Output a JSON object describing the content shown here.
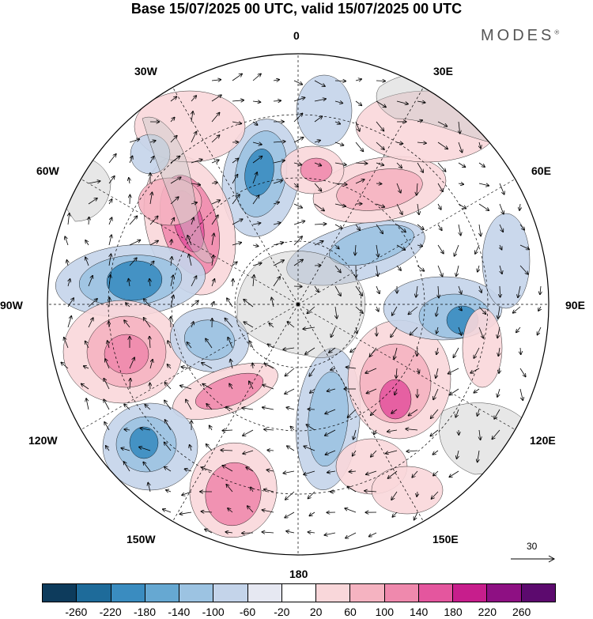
{
  "title": "Base 15/07/2025 00 UTC, valid 15/07/2025 00 UTC",
  "brand": "MODES",
  "brand_mark": "®",
  "map_labels": {
    "lon_0": "0",
    "lon_30e": "30E",
    "lon_60e": "60E",
    "lon_90e": "90E",
    "lon_120e": "120E",
    "lon_150e": "150E",
    "lon_180": "180",
    "lon_150w": "150W",
    "lon_120w": "120W",
    "lon_90w": "90W",
    "lon_60w": "60W",
    "lon_30w": "30W"
  },
  "reference_vector": {
    "value": "30",
    "icon": "arrow-right-icon"
  },
  "colorbar": {
    "ticks": [
      "-260",
      "-220",
      "-180",
      "-140",
      "-100",
      "-60",
      "-20",
      "20",
      "60",
      "100",
      "140",
      "180",
      "220",
      "260"
    ],
    "colors": [
      "#0d3b5c",
      "#1e6b9a",
      "#3a8cc0",
      "#66a8d2",
      "#9cc3e2",
      "#c4d4ea",
      "#e6e8f2",
      "#ffffff",
      "#f9d7da",
      "#f5b3c1",
      "#ef89ad",
      "#e4569e",
      "#c71e8c",
      "#8e1083",
      "#5c0a6e"
    ]
  },
  "chart_data": {
    "type": "heatmap",
    "projection": "polar stereographic (south pole centred)",
    "title": "Base 15/07/2025 00 UTC, valid 15/07/2025 00 UTC",
    "color_scale_ticks": [
      -260,
      -220,
      -180,
      -140,
      -100,
      -60,
      -20,
      20,
      60,
      100,
      140,
      180,
      220,
      260
    ],
    "longitude_labels": [
      "0",
      "30E",
      "60E",
      "90E",
      "120E",
      "150E",
      "180",
      "150W",
      "120W",
      "90W",
      "60W",
      "30W"
    ],
    "reference_vector": 30,
    "grid": true
  }
}
